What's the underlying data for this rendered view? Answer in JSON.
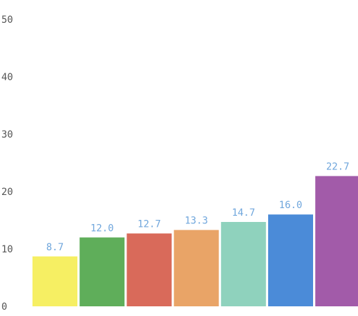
{
  "chart_data": {
    "type": "bar",
    "title": "",
    "xlabel": "",
    "ylabel": "",
    "ylim": [
      0,
      50
    ],
    "y_ticks": [
      "0",
      "10",
      "20",
      "30",
      "40",
      "50"
    ],
    "y_tick_values": [
      0,
      10,
      20,
      30,
      40,
      50
    ],
    "grid": false,
    "values": [
      8.7,
      12.0,
      12.7,
      13.3,
      14.7,
      16.0,
      22.7
    ],
    "data_labels": [
      "8.7",
      "12.0",
      "12.7",
      "13.3",
      "14.7",
      "16.0",
      "22.7"
    ],
    "colors": [
      "#f6ef63",
      "#5fae5a",
      "#d96a5a",
      "#e9a467",
      "#8fd2bd",
      "#4b8bd8",
      "#a25ba9"
    ],
    "label_color": "#6fa6dc",
    "axis_label_color": "#555555"
  }
}
